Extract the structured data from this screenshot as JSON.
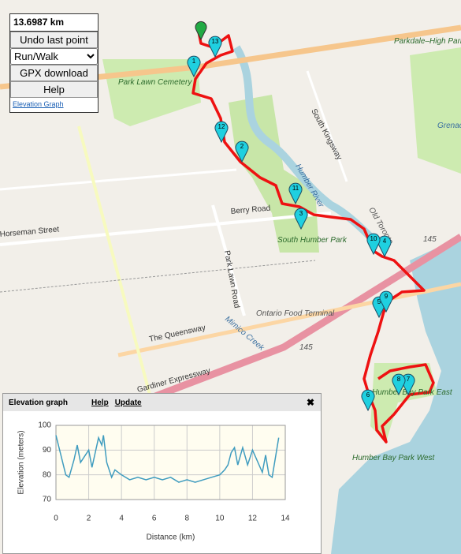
{
  "controls": {
    "distance": "13.6987 km",
    "undo": "Undo last point",
    "mode": "Run/Walk",
    "gpx": "GPX download",
    "help": "Help",
    "elevation_link": "Elevation Graph"
  },
  "map_labels": [
    "Parkdale–High Park",
    "Park Lawn Cemetery",
    "South Kingsway",
    "Berry Road",
    "Horseman Street",
    "South Humber Park",
    "Park Lawn Road",
    "Ontario Food Terminal",
    "The Queensway",
    "Mimico Creek",
    "Gardiner Expressway",
    "Humber Bay Park East",
    "Humber Bay Park West",
    "Grenadier Pond",
    "Humber River",
    "Old Toronto",
    "145",
    "145"
  ],
  "markers": [
    "1",
    "2",
    "3",
    "4",
    "5",
    "6",
    "7",
    "8",
    "9",
    "10",
    "11",
    "12",
    "13"
  ],
  "panel": {
    "title": "Elevation graph",
    "help": "Help",
    "update": "Update",
    "close": "✖"
  },
  "chart_data": {
    "type": "line",
    "x_label": "Distance (km)",
    "y_label": "Elevation (meters)",
    "x": [
      0,
      0.3,
      0.6,
      0.8,
      1.1,
      1.3,
      1.5,
      1.8,
      2.0,
      2.2,
      2.6,
      2.8,
      2.9,
      3.1,
      3.4,
      3.6,
      4.0,
      4.5,
      5.0,
      5.5,
      6.0,
      6.5,
      7.0,
      7.5,
      8.0,
      8.5,
      9.0,
      9.5,
      10.0,
      10.3,
      10.5,
      10.7,
      10.9,
      11.1,
      11.4,
      11.7,
      12.0,
      12.2,
      12.4,
      12.6,
      12.8,
      13.0,
      13.2,
      13.4,
      13.6
    ],
    "values": [
      96,
      88,
      80,
      79,
      86,
      92,
      85,
      88,
      90,
      83,
      95,
      92,
      96,
      85,
      79,
      82,
      80,
      78,
      79,
      78,
      79,
      78,
      79,
      77,
      78,
      77,
      78,
      79,
      80,
      82,
      84,
      89,
      91,
      84,
      91,
      84,
      90,
      87,
      84,
      81,
      88,
      80,
      79,
      87,
      95
    ],
    "color": "#3f9cbf",
    "xlim": [
      0,
      14
    ],
    "ylim": [
      70,
      100
    ],
    "xticks": [
      0,
      2,
      4,
      6,
      8,
      10,
      12,
      14
    ],
    "yticks": [
      70,
      80,
      90,
      100
    ],
    "grid": true
  }
}
